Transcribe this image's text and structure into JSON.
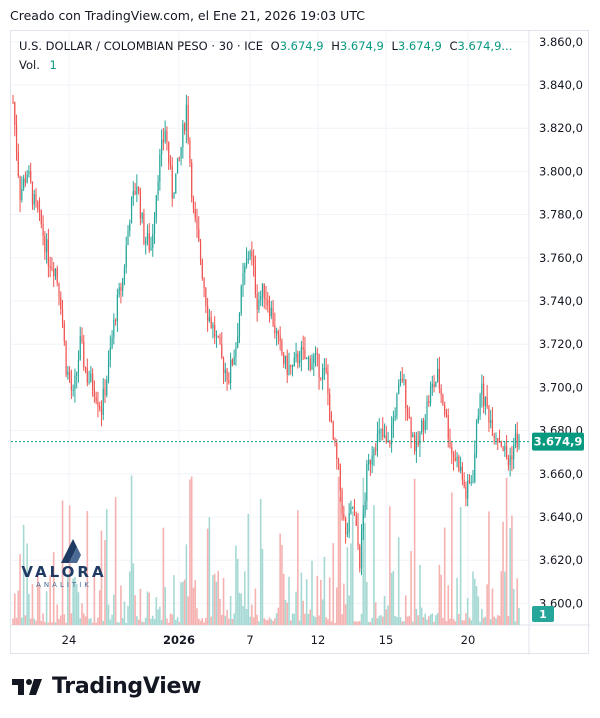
{
  "header": {
    "created_text": "Creado con TradingView.com, el Ene 21, 2026 19:03 UTC"
  },
  "legend": {
    "symbol": "U.S. DOLLAR / COLOMBIAN PESO · 30 · ICE",
    "o_label": "O",
    "o_value": "3.674,9",
    "h_label": "H",
    "h_value": "3.674,9",
    "l_label": "L",
    "l_value": "3.674,9",
    "c_label": "C",
    "c_value": "3.674,9...",
    "vol_label": "Vol.",
    "vol_value": "1"
  },
  "watermark": {
    "brand": "VALORA",
    "sub": "ANALITIK"
  },
  "footer": {
    "brand": "TradingView"
  },
  "colors": {
    "up": "#26a69a",
    "down": "#ef5350",
    "up_vol": "#a6d9d3",
    "down_vol": "#f5b2b1",
    "accent": "#089981"
  },
  "chart_data": {
    "type": "candlestick",
    "y_tick_labels": [
      "3.860,0",
      "3.840,0",
      "3.820,0",
      "3.800,0",
      "3.780,0",
      "3.760,0",
      "3.740,0",
      "3.720,0",
      "3.700,0",
      "3.680,0",
      "3.660,0",
      "3.640,0",
      "3.620,0",
      "3.600,0"
    ],
    "y_ticks": [
      3860,
      3840,
      3820,
      3800,
      3780,
      3760,
      3740,
      3720,
      3700,
      3680,
      3660,
      3640,
      3620,
      3600
    ],
    "ylim": [
      3590,
      3865
    ],
    "x_tick_labels": [
      "24",
      "2026",
      "7",
      "12",
      "15",
      "20"
    ],
    "last_price_label": "3.674,9",
    "last_price": 3674.9,
    "last_volume_label": "1",
    "price_path": [
      [
        0,
        3832
      ],
      [
        4,
        3790
      ],
      [
        8,
        3800
      ],
      [
        12,
        3785
      ],
      [
        16,
        3775
      ],
      [
        20,
        3760
      ],
      [
        24,
        3755
      ],
      [
        27,
        3740
      ],
      [
        30,
        3710
      ],
      [
        34,
        3695
      ],
      [
        38,
        3720
      ],
      [
        42,
        3705
      ],
      [
        46,
        3700
      ],
      [
        50,
        3690
      ],
      [
        54,
        3710
      ],
      [
        58,
        3735
      ],
      [
        62,
        3750
      ],
      [
        66,
        3780
      ],
      [
        70,
        3795
      ],
      [
        74,
        3770
      ],
      [
        78,
        3765
      ],
      [
        82,
        3800
      ],
      [
        86,
        3820
      ],
      [
        90,
        3790
      ],
      [
        94,
        3805
      ],
      [
        98,
        3830
      ],
      [
        102,
        3780
      ],
      [
        106,
        3760
      ],
      [
        110,
        3735
      ],
      [
        114,
        3725
      ],
      [
        118,
        3712
      ],
      [
        122,
        3705
      ],
      [
        126,
        3720
      ],
      [
        130,
        3750
      ],
      [
        134,
        3765
      ],
      [
        138,
        3740
      ],
      [
        142,
        3745
      ],
      [
        146,
        3735
      ],
      [
        150,
        3720
      ],
      [
        154,
        3710
      ],
      [
        158,
        3708
      ],
      [
        162,
        3716
      ],
      [
        166,
        3712
      ],
      [
        170,
        3713
      ],
      [
        174,
        3708
      ],
      [
        177,
        3705
      ],
      [
        180,
        3680
      ],
      [
        184,
        3660
      ],
      [
        188,
        3630
      ],
      [
        192,
        3645
      ],
      [
        196,
        3620
      ],
      [
        200,
        3660
      ],
      [
        204,
        3675
      ],
      [
        208,
        3678
      ],
      [
        212,
        3672
      ],
      [
        216,
        3690
      ],
      [
        220,
        3705
      ],
      [
        224,
        3685
      ],
      [
        228,
        3670
      ],
      [
        232,
        3685
      ],
      [
        236,
        3698
      ],
      [
        240,
        3705
      ],
      [
        244,
        3690
      ],
      [
        248,
        3670
      ],
      [
        252,
        3665
      ],
      [
        256,
        3650
      ],
      [
        260,
        3660
      ],
      [
        264,
        3700
      ],
      [
        268,
        3690
      ],
      [
        272,
        3680
      ],
      [
        276,
        3675
      ],
      [
        280,
        3665
      ],
      [
        284,
        3676
      ],
      [
        286,
        3674.9
      ]
    ],
    "n_bars": 286
  }
}
